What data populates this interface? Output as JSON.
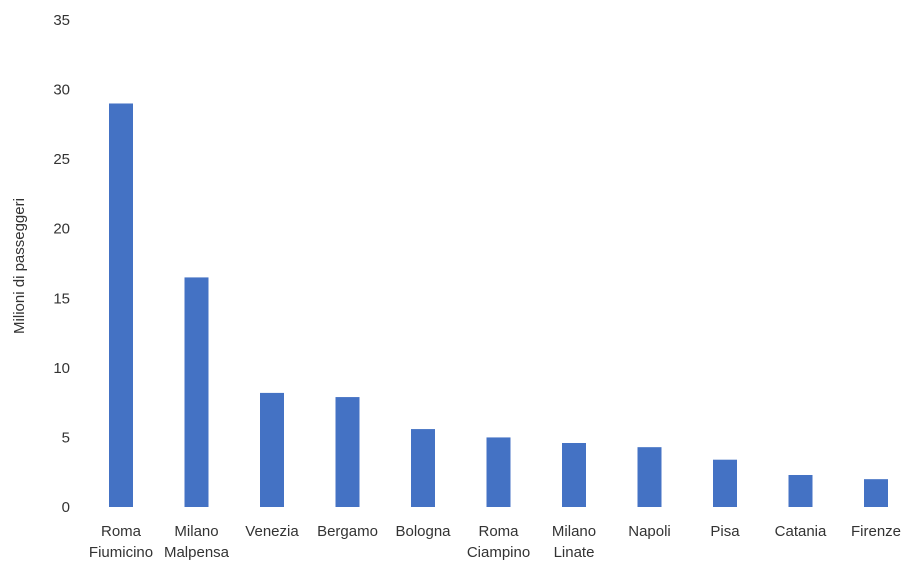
{
  "chart_data": {
    "type": "bar",
    "title": "",
    "xlabel": "",
    "ylabel": "Milioni di passeggeri",
    "ylim": [
      0,
      35
    ],
    "yticks": [
      0,
      5,
      10,
      15,
      20,
      25,
      30,
      35
    ],
    "grid": false,
    "legend": "none",
    "bar_color": "#4472c4",
    "categories": [
      [
        "Roma",
        "Fiumicino"
      ],
      [
        "Milano",
        "Malpensa"
      ],
      [
        "Venezia"
      ],
      [
        "Bergamo"
      ],
      [
        "Bologna"
      ],
      [
        "Roma",
        "Ciampino"
      ],
      [
        "Milano",
        "Linate"
      ],
      [
        "Napoli"
      ],
      [
        "Pisa"
      ],
      [
        "Catania"
      ],
      [
        "Firenze"
      ]
    ],
    "values": [
      29.0,
      16.5,
      8.2,
      7.9,
      5.6,
      5.0,
      4.6,
      4.3,
      3.4,
      2.3,
      2.0
    ]
  }
}
